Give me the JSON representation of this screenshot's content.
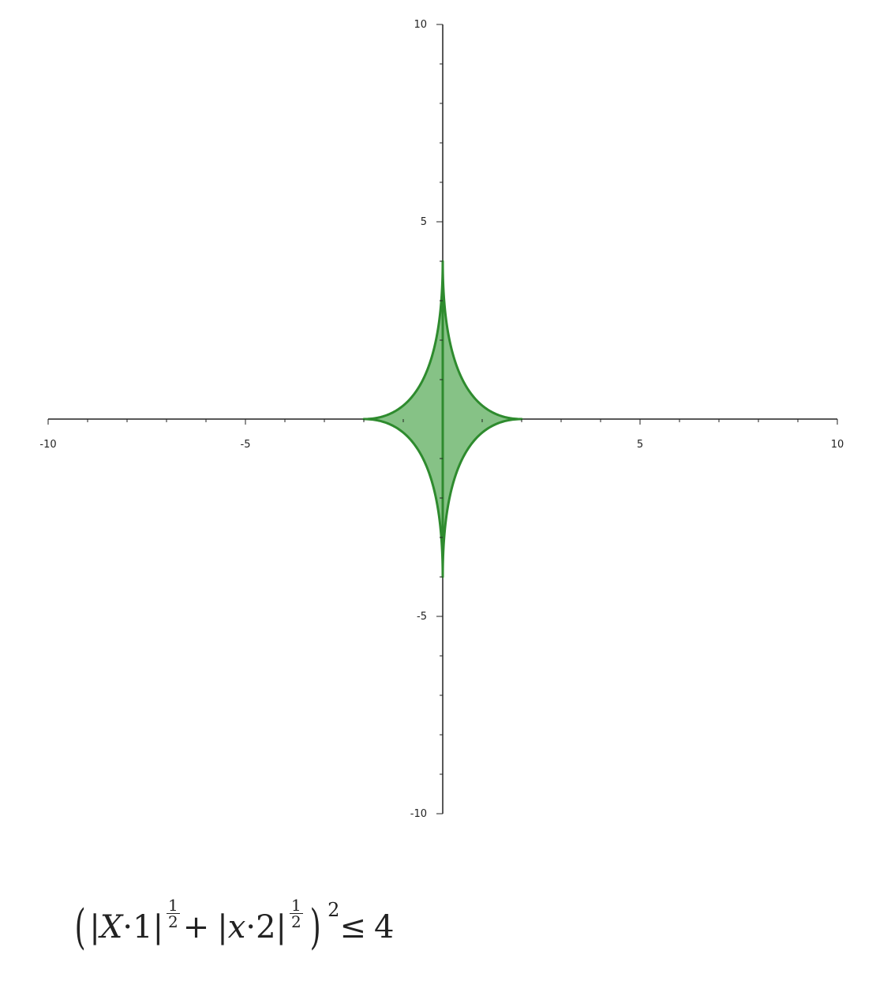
{
  "chart_data": {
    "type": "area",
    "title": "",
    "xlabel": "",
    "ylabel": "",
    "xlim": [
      -10,
      10
    ],
    "ylim": [
      -10,
      10
    ],
    "grid": false,
    "x_major_ticks": [
      -10,
      -5,
      5,
      10
    ],
    "y_major_ticks": [
      -10,
      -5,
      5,
      10
    ],
    "x_tick_labels": [
      "-10",
      "-5",
      "5",
      "10"
    ],
    "y_tick_labels": [
      "10",
      "5",
      "-5",
      "-10"
    ],
    "minor_tick_step": 1,
    "series": [
      {
        "region": "(|y·1|^(1/2) + |x·2|^(1/2))^2 <= 4",
        "x_extent": [
          -2,
          2
        ],
        "y_extent": [
          -4,
          4
        ],
        "boundary": [
          {
            "x": 0,
            "y": 4
          },
          {
            "x": 0.125,
            "y": 2.25
          },
          {
            "x": 0.5,
            "y": 1
          },
          {
            "x": 1.125,
            "y": 0.25
          },
          {
            "x": 2,
            "y": 0
          },
          {
            "x": 1.125,
            "y": -0.25
          },
          {
            "x": 0.5,
            "y": -1
          },
          {
            "x": 0.125,
            "y": -2.25
          },
          {
            "x": 0,
            "y": -4
          },
          {
            "x": -0.125,
            "y": -2.25
          },
          {
            "x": -0.5,
            "y": -1
          },
          {
            "x": -1.125,
            "y": -0.25
          },
          {
            "x": -2,
            "y": 0
          },
          {
            "x": -1.125,
            "y": 0.25
          },
          {
            "x": -0.5,
            "y": 1
          },
          {
            "x": -0.125,
            "y": 2.25
          }
        ],
        "fill_color": "#86c286",
        "line_color": "#2e8b2e"
      }
    ]
  },
  "formula": {
    "var1": "X",
    "dot1": "·",
    "one": "1",
    "frac_num": "1",
    "frac_den": "2",
    "plus": "+",
    "var2": "x",
    "dot2": "·",
    "two": "2",
    "power": "2",
    "leq": "≤",
    "rhs": "4"
  }
}
